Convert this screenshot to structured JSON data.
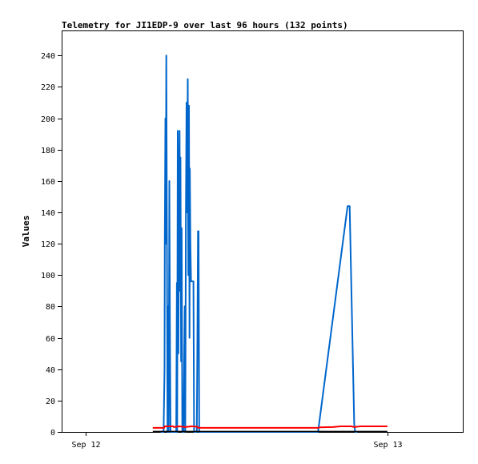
{
  "chart_data": {
    "type": "line",
    "title": "Telemetry for JI1EDP-9 over last 96 hours (132 points)",
    "ylabel": "Values",
    "xlabel": "",
    "ylim": [
      0,
      256
    ],
    "yticks": [
      0,
      20,
      40,
      60,
      80,
      100,
      120,
      140,
      160,
      180,
      200,
      220,
      240
    ],
    "xlim": [
      -0.08,
      1.25
    ],
    "xticks": [
      {
        "label": "Sep 12",
        "x": 0.0
      },
      {
        "label": "Sep 13",
        "x": 1.0
      }
    ],
    "grid": false,
    "legend": "none",
    "series": [
      {
        "color": "#0066cc",
        "points": [
          [
            0.248,
            0
          ],
          [
            0.258,
            0
          ],
          [
            0.261,
            40
          ],
          [
            0.262,
            120
          ],
          [
            0.264,
            200
          ],
          [
            0.265,
            120
          ],
          [
            0.267,
            240
          ],
          [
            0.269,
            120
          ],
          [
            0.271,
            0
          ],
          [
            0.273,
            80
          ],
          [
            0.275,
            0
          ],
          [
            0.277,
            160
          ],
          [
            0.279,
            70
          ],
          [
            0.281,
            0
          ],
          [
            0.3,
            0
          ],
          [
            0.302,
            95
          ],
          [
            0.303,
            0
          ],
          [
            0.305,
            192
          ],
          [
            0.307,
            50
          ],
          [
            0.309,
            142
          ],
          [
            0.311,
            192
          ],
          [
            0.313,
            90
          ],
          [
            0.314,
            175
          ],
          [
            0.316,
            45
          ],
          [
            0.318,
            130
          ],
          [
            0.32,
            0
          ],
          [
            0.324,
            0
          ],
          [
            0.326,
            40
          ],
          [
            0.328,
            80
          ],
          [
            0.33,
            0
          ],
          [
            0.332,
            140
          ],
          [
            0.334,
            210
          ],
          [
            0.336,
            140
          ],
          [
            0.338,
            225
          ],
          [
            0.34,
            100
          ],
          [
            0.342,
            208
          ],
          [
            0.344,
            60
          ],
          [
            0.345,
            168
          ],
          [
            0.347,
            120
          ],
          [
            0.349,
            96
          ],
          [
            0.357,
            96
          ],
          [
            0.359,
            0
          ],
          [
            0.368,
            0
          ],
          [
            0.37,
            55
          ],
          [
            0.372,
            128
          ],
          [
            0.374,
            128
          ],
          [
            0.376,
            0
          ],
          [
            0.77,
            0
          ],
          [
            0.868,
            144
          ],
          [
            0.875,
            144
          ],
          [
            0.89,
            5
          ],
          [
            0.893,
            0
          ],
          [
            0.9,
            0
          ]
        ]
      },
      {
        "color": "#ff0000",
        "points": [
          [
            0.222,
            2.6
          ],
          [
            0.26,
            2.6
          ],
          [
            0.262,
            3.6
          ],
          [
            0.29,
            3.6
          ],
          [
            0.292,
            3.1
          ],
          [
            0.31,
            3.6
          ],
          [
            0.33,
            3.1
          ],
          [
            0.35,
            3.6
          ],
          [
            0.37,
            3.3
          ],
          [
            0.372,
            2.6
          ],
          [
            0.77,
            2.6
          ],
          [
            0.775,
            2.9
          ],
          [
            0.82,
            3.1
          ],
          [
            0.845,
            3.6
          ],
          [
            0.88,
            3.6
          ],
          [
            0.89,
            3.1
          ],
          [
            0.91,
            3.6
          ],
          [
            0.98,
            3.6
          ],
          [
            1.0,
            3.6
          ]
        ]
      },
      {
        "color": "#000000",
        "points": [
          [
            0.222,
            0.3
          ],
          [
            1.0,
            0.3
          ]
        ]
      }
    ]
  }
}
